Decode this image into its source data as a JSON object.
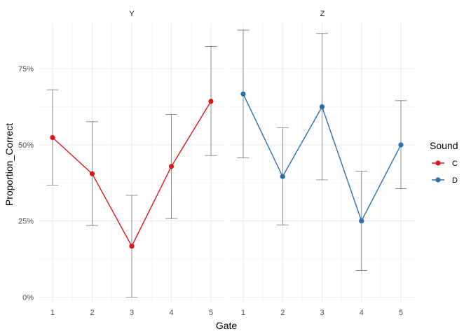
{
  "chart_data": {
    "type": "line",
    "xlabel": "Gate",
    "ylabel": "Proportion_Correct",
    "x": [
      1,
      2,
      3,
      4,
      5
    ],
    "ylim": [
      -0.02,
      0.9
    ],
    "y_ticks": [
      0,
      0.25,
      0.5,
      0.75
    ],
    "y_tick_labels": [
      "0%",
      "25%",
      "50%",
      "75%"
    ],
    "grid": true,
    "legend": {
      "title": "Sound",
      "placement": "right",
      "entries": [
        {
          "label": "C",
          "color": "#d7191c"
        },
        {
          "label": "D",
          "color": "#2c6fac"
        }
      ]
    },
    "errorbar_color": "#666666",
    "panels": [
      {
        "label": "Y",
        "series": [
          {
            "sound": "C",
            "color": "#d7191c",
            "values": [
              0.524,
              0.405,
              0.167,
              0.429,
              0.643
            ],
            "lower": [
              0.368,
              0.235,
              0.0,
              0.258,
              0.465
            ],
            "upper": [
              0.681,
              0.576,
              0.334,
              0.6,
              0.823
            ]
          }
        ]
      },
      {
        "label": "Z",
        "series": [
          {
            "sound": "D",
            "color": "#2c6fac",
            "values": [
              0.667,
              0.396,
              0.625,
              0.25,
              0.5
            ],
            "lower": [
              0.457,
              0.237,
              0.385,
              0.087,
              0.356
            ],
            "upper": [
              0.877,
              0.556,
              0.866,
              0.413,
              0.645
            ]
          }
        ]
      }
    ]
  }
}
